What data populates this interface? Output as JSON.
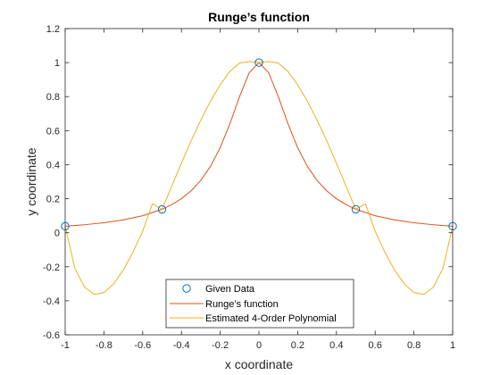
{
  "chart_data": {
    "type": "line",
    "title": "Runge’s function",
    "xlabel": "x coordinate",
    "ylabel": "y coordinate",
    "xlim": [
      -1,
      1
    ],
    "ylim": [
      -0.6,
      1.2
    ],
    "xticks": [
      -1,
      -0.8,
      -0.6,
      -0.4,
      -0.2,
      0,
      0.2,
      0.4,
      0.6,
      0.8,
      1
    ],
    "xtick_labels": [
      "-1",
      "-0.8",
      "-0.6",
      "-0.4",
      "-0.2",
      "0",
      "0.2",
      "0.4",
      "0.6",
      "0.8",
      "1"
    ],
    "yticks": [
      -0.6,
      -0.4,
      -0.2,
      0,
      0.2,
      0.4,
      0.6,
      0.8,
      1,
      1.2
    ],
    "ytick_labels": [
      "-0.6",
      "-0.4",
      "-0.2",
      "0",
      "0.2",
      "0.4",
      "0.6",
      "0.8",
      "1",
      "1.2"
    ],
    "grid": false,
    "legend_position": "bottom-center",
    "series": [
      {
        "name": "Given Data",
        "kind": "scatter",
        "marker": "circle",
        "color": "#0072BD",
        "x": [
          -1,
          -0.5,
          0,
          0.5,
          1
        ],
        "y": [
          0.0385,
          0.1379,
          1,
          0.1379,
          0.0385
        ]
      },
      {
        "name": "Runge’s function",
        "kind": "line",
        "color": "#D95319",
        "x": [
          -1,
          -0.9,
          -0.8,
          -0.7,
          -0.6,
          -0.5,
          -0.45,
          -0.4,
          -0.35,
          -0.3,
          -0.25,
          -0.2,
          -0.15,
          -0.1,
          -0.05,
          0,
          0.05,
          0.1,
          0.15,
          0.2,
          0.25,
          0.3,
          0.35,
          0.4,
          0.45,
          0.5,
          0.6,
          0.7,
          0.8,
          0.9,
          1
        ],
        "y": [
          0.0385,
          0.0471,
          0.0588,
          0.0755,
          0.1,
          0.1379,
          0.165,
          0.2,
          0.2462,
          0.3077,
          0.3902,
          0.5,
          0.64,
          0.8,
          0.9412,
          1,
          0.9412,
          0.8,
          0.64,
          0.5,
          0.3902,
          0.3077,
          0.2462,
          0.2,
          0.165,
          0.1379,
          0.1,
          0.0755,
          0.0588,
          0.0471,
          0.0385
        ]
      },
      {
        "name": "Estimated 4-Order Polynomial",
        "kind": "line",
        "color": "#EDB120",
        "x": [
          -1,
          -0.95,
          -0.9,
          -0.85,
          -0.8,
          -0.75,
          -0.7,
          -0.65,
          -0.6,
          -0.55,
          -0.5,
          -0.45,
          -0.4,
          -0.35,
          -0.3,
          -0.25,
          -0.2,
          -0.15,
          -0.1,
          -0.05,
          0,
          0.05,
          0.1,
          0.15,
          0.2,
          0.25,
          0.3,
          0.35,
          0.4,
          0.45,
          0.5,
          0.55,
          0.6,
          0.65,
          0.7,
          0.75,
          0.8,
          0.85,
          0.9,
          0.95,
          1
        ],
        "y": [
          0.0385,
          -0.2093,
          -0.3201,
          -0.3625,
          -0.3518,
          -0.3007,
          -0.2191,
          -0.1144,
          0.0087,
          0.1705,
          0.1379,
          0.2737,
          0.4096,
          0.5405,
          0.6627,
          0.7733,
          0.8695,
          0.9484,
          0.9972,
          1.0064,
          1,
          1.0064,
          0.9972,
          0.9484,
          0.8695,
          0.7733,
          0.6627,
          0.5405,
          0.4096,
          0.2737,
          0.1379,
          0.1705,
          0.0087,
          -0.1144,
          -0.2191,
          -0.3007,
          -0.3518,
          -0.3625,
          -0.3201,
          -0.2093,
          0.0385
        ]
      }
    ]
  }
}
